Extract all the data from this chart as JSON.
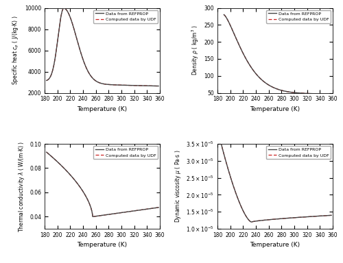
{
  "T_min": 180,
  "T_max": 360,
  "legend_refprop": "Data from REFPROP",
  "legend_udf": "Computed data by UDF",
  "line_color_refprop": "#444444",
  "line_color_udf": "#cc2222",
  "ylabels": [
    "Specific heat $c_p$ ( J/(kg$\\cdot$K) )",
    "Density $\\rho$ ( kg/m$^3$ )",
    "Thermal conductivity $\\lambda$ ( W/(m$\\cdot$K) )",
    "Dynamic viscosity $\\mu$ ( Pa$\\cdot$s )"
  ],
  "xlabel": "Temperature (K)",
  "cp_ylim": [
    2000,
    10000
  ],
  "rho_ylim": [
    50,
    300
  ],
  "lambda_ylim": [
    0.03,
    0.1
  ],
  "mu_ylim": [
    1e-05,
    3.5e-05
  ],
  "cp_yticks": [
    2000,
    4000,
    6000,
    8000,
    10000
  ],
  "rho_yticks": [
    50,
    100,
    150,
    200,
    250,
    300
  ],
  "lambda_yticks": [
    0.04,
    0.06,
    0.08,
    0.1
  ],
  "mu_yticks": [
    1e-05,
    1.5e-05,
    2e-05,
    2.5e-05,
    3e-05,
    3.5e-05
  ],
  "xticks": [
    180,
    200,
    220,
    240,
    260,
    280,
    300,
    320,
    340,
    360
  ]
}
